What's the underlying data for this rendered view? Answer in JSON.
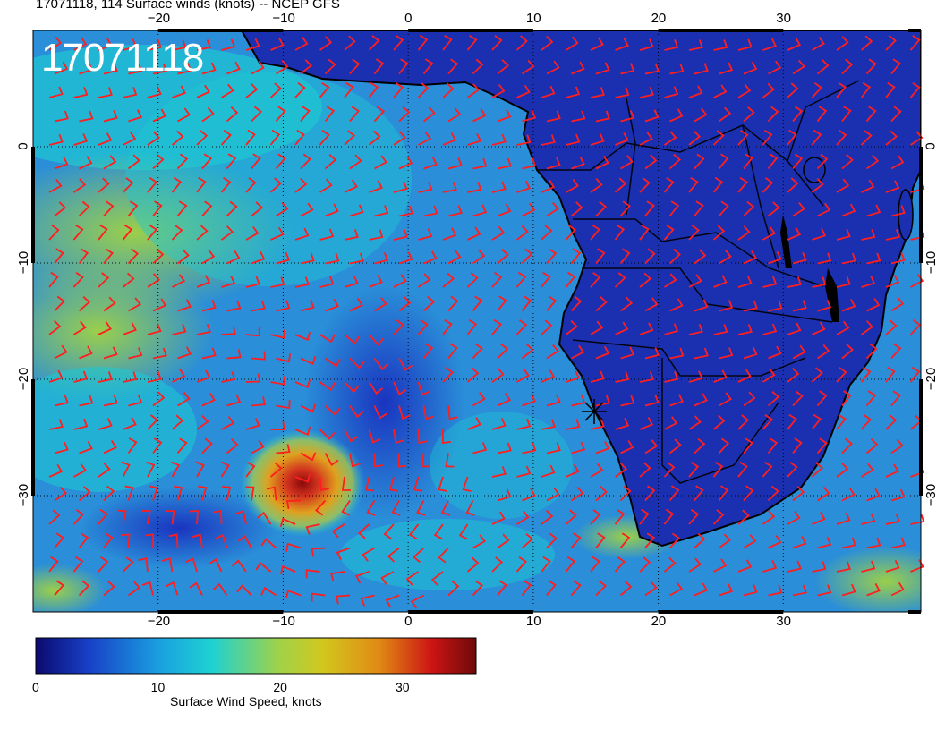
{
  "header": {
    "title": "17071118, 114 Surface winds (knots) -- NCEP GFS"
  },
  "stamp": "17071118",
  "axes": {
    "top_labels": [
      "−20",
      "−10",
      "0",
      "10",
      "20",
      "30"
    ],
    "bottom_labels": [
      "−20",
      "−10",
      "0",
      "10",
      "20",
      "30"
    ],
    "left_labels": [
      "0",
      "−10",
      "−20",
      "−30"
    ],
    "right_labels": [
      "0",
      "−10",
      "−20",
      "−30"
    ],
    "lon_values": [
      -20,
      -10,
      0,
      10,
      20,
      30
    ],
    "lat_values": [
      0,
      -10,
      -20,
      -30
    ],
    "lon_range": [
      -30,
      41
    ],
    "lat_range": [
      -40,
      10
    ],
    "grid": true
  },
  "colorbar": {
    "label": "Surface Wind Speed, knots",
    "ticks": [
      "0",
      "10",
      "20",
      "30"
    ],
    "tick_values": [
      0,
      10,
      20,
      30
    ],
    "range": [
      0,
      36
    ],
    "colors": [
      "#0a0a6e",
      "#1840c8",
      "#1aa0e0",
      "#1ed2d2",
      "#9ed24a",
      "#d2c81e",
      "#e08a14",
      "#cc1414",
      "#6e0a0a"
    ]
  },
  "colors": {
    "ocean_base": "#2a8ed8",
    "land": "#1a30b0",
    "barb": "#ff1e1e",
    "coast": "#000000",
    "gale_core": "#cc2a10"
  },
  "marker": {
    "name": "station-marker",
    "lon": 14.5,
    "lat": -22.9
  }
}
